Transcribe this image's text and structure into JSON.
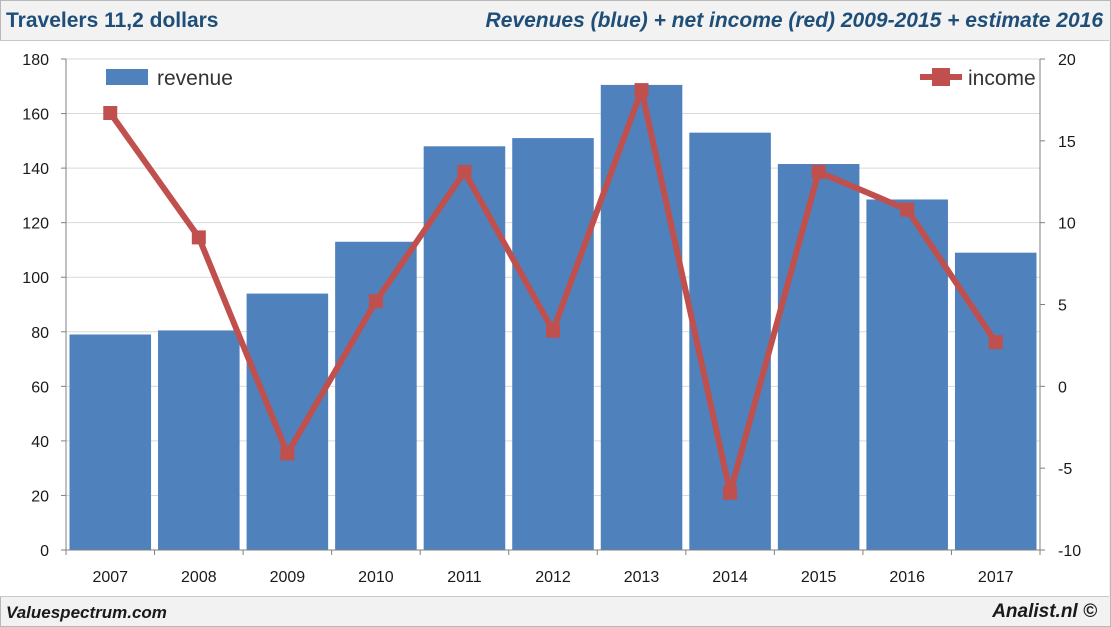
{
  "header": {
    "title": "Travelers 11,2 dollars",
    "subtitle": "Revenues (blue) + net income (red) 2009-2015 + estimate 2016"
  },
  "footer": {
    "left": "Valuespectrum.com",
    "right": "Analist.nl ©"
  },
  "colors": {
    "bar": "#4f81bd",
    "line": "#c0504d",
    "grid": "#d9d9d9",
    "axis": "#808080"
  },
  "chart_data": {
    "type": "bar+line",
    "categories": [
      "2007",
      "2008",
      "2009",
      "2010",
      "2011",
      "2012",
      "2013",
      "2014",
      "2015",
      "2016",
      "2017"
    ],
    "series": [
      {
        "name": "revenue",
        "type": "bar",
        "axis": "left",
        "values": [
          79,
          80.5,
          94,
          113,
          148,
          151,
          170.5,
          153,
          141.5,
          128.5,
          109
        ]
      },
      {
        "name": "income",
        "type": "line",
        "axis": "right",
        "values": [
          16.7,
          9.1,
          -4.1,
          5.2,
          13.1,
          3.4,
          18.1,
          -6.5,
          13.1,
          10.8,
          2.7
        ]
      }
    ],
    "yleft": {
      "min": 0,
      "max": 180,
      "step": 20,
      "ticks": [
        "0",
        "20",
        "40",
        "60",
        "80",
        "100",
        "120",
        "140",
        "160",
        "180"
      ]
    },
    "yright": {
      "min": -10,
      "max": 20,
      "step": 5,
      "ticks": [
        "-10",
        "-5",
        "0",
        "5",
        "10",
        "15",
        "20"
      ]
    },
    "legend": {
      "revenue": "revenue",
      "income": "income"
    },
    "grid": true
  }
}
